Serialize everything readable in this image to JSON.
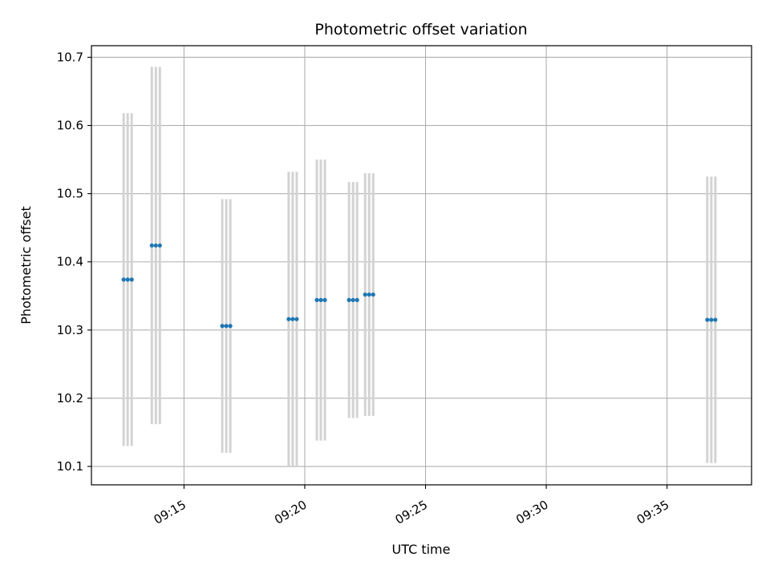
{
  "chart_data": {
    "type": "scatter",
    "title": "Photometric offset variation",
    "xlabel": "UTC time",
    "ylabel": "Photometric offset",
    "grid": true,
    "xlim": [
      "09:11:10",
      "09:38:30"
    ],
    "ylim": [
      10.073,
      10.717
    ],
    "x_ticks": [
      "09:15",
      "09:20",
      "09:25",
      "09:30",
      "09:35"
    ],
    "y_ticks": [
      10.1,
      10.2,
      10.3,
      10.4,
      10.5,
      10.6,
      10.7
    ],
    "colors": {
      "point": "#1f77b4",
      "errorbar": "#d3d3d3",
      "grid": "#b0b0b0"
    },
    "series": [
      {
        "points": [
          {
            "x": "09:12:30",
            "y": 10.374,
            "err": 0.244
          },
          {
            "x": "09:12:40",
            "y": 10.374,
            "err": 0.244
          },
          {
            "x": "09:12:50",
            "y": 10.374,
            "err": 0.244
          },
          {
            "x": "09:13:40",
            "y": 10.424,
            "err": 0.262
          },
          {
            "x": "09:13:50",
            "y": 10.424,
            "err": 0.262
          },
          {
            "x": "09:14:00",
            "y": 10.424,
            "err": 0.262
          },
          {
            "x": "09:16:35",
            "y": 10.306,
            "err": 0.186
          },
          {
            "x": "09:16:45",
            "y": 10.306,
            "err": 0.186
          },
          {
            "x": "09:16:55",
            "y": 10.306,
            "err": 0.186
          },
          {
            "x": "09:19:20",
            "y": 10.316,
            "err": 0.216
          },
          {
            "x": "09:19:30",
            "y": 10.316,
            "err": 0.216
          },
          {
            "x": "09:19:40",
            "y": 10.316,
            "err": 0.216
          },
          {
            "x": "09:20:30",
            "y": 10.344,
            "err": 0.206
          },
          {
            "x": "09:20:40",
            "y": 10.344,
            "err": 0.206
          },
          {
            "x": "09:20:50",
            "y": 10.344,
            "err": 0.206
          },
          {
            "x": "09:21:50",
            "y": 10.344,
            "err": 0.173
          },
          {
            "x": "09:22:00",
            "y": 10.344,
            "err": 0.173
          },
          {
            "x": "09:22:10",
            "y": 10.344,
            "err": 0.173
          },
          {
            "x": "09:22:30",
            "y": 10.352,
            "err": 0.178
          },
          {
            "x": "09:22:40",
            "y": 10.352,
            "err": 0.178
          },
          {
            "x": "09:22:50",
            "y": 10.352,
            "err": 0.178
          },
          {
            "x": "09:36:40",
            "y": 10.315,
            "err": 0.21
          },
          {
            "x": "09:36:50",
            "y": 10.315,
            "err": 0.21
          },
          {
            "x": "09:37:00",
            "y": 10.315,
            "err": 0.21
          }
        ]
      }
    ]
  }
}
